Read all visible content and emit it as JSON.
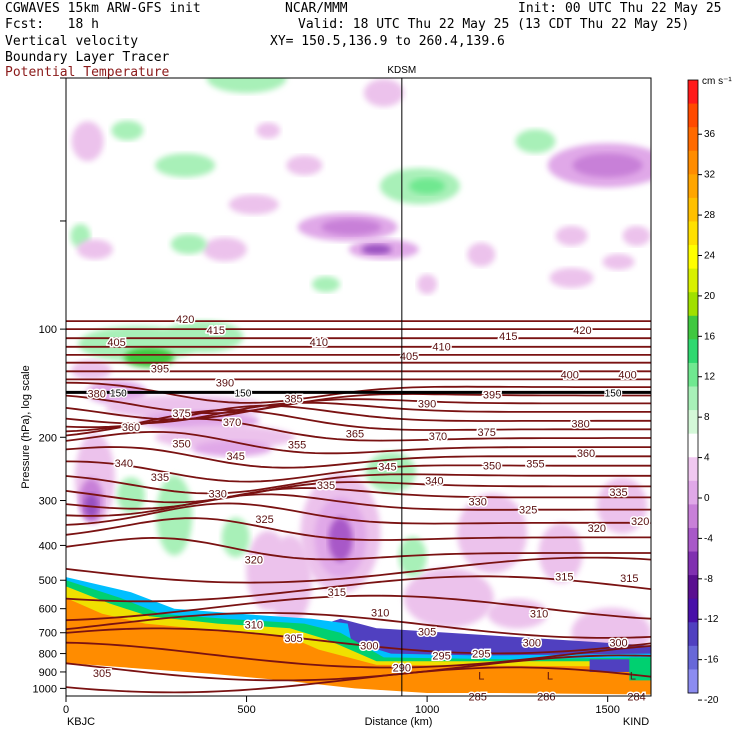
{
  "header": {
    "left": [
      "CGWAVES 15km ARW-GFS init",
      "Fcst:   18 h",
      "Vertical velocity",
      "Boundary Layer Tracer",
      "Potential Temperature"
    ],
    "center": [
      "NCAR/MMM",
      "Valid: 18 UTC Thu 22 May 25 (13 CDT Thu 22 May 25)",
      "XY= 150.5,136.9 to 260.4,139.6"
    ],
    "init": "Init: 00 UTC Thu 22 May 25",
    "station_top": "KDSM"
  },
  "colors": {
    "theta": "#7a1212",
    "tropopause": "#000000",
    "pbl_orange": "#ff8c00"
  },
  "chart_data": {
    "type": "cross-section",
    "xlabel": "Distance (km)",
    "ylabel": "Pressure (hPa), log scale",
    "x_ticks": [
      "0",
      "500",
      "1000",
      "1500"
    ],
    "y_ticks": [
      "100",
      "200",
      "300",
      "400",
      "500",
      "600",
      "700",
      "800",
      "900",
      "1000"
    ],
    "xlim": [
      0,
      1620
    ],
    "ylim": [
      1050,
      20
    ],
    "x_end_labels": [
      "KBJC",
      "KIND"
    ],
    "station_marker_km": 930,
    "colorbar": {
      "unit": "cm s⁻¹",
      "ticks": [
        "36",
        "32",
        "28",
        "24",
        "20",
        "16",
        "12",
        "8",
        "4",
        "0",
        "-4",
        "-8",
        "-12",
        "-16",
        "-20"
      ],
      "colors": [
        "#ff1a1a",
        "#ff4a00",
        "#ff6a00",
        "#ff8c00",
        "#ffa500",
        "#ffc000",
        "#ffe000",
        "#ffff00",
        "#d8f000",
        "#a0e000",
        "#40c840",
        "#30d870",
        "#70e890",
        "#a8f0b8",
        "#d4f8d8",
        "#ffffff",
        "#f0c8f0",
        "#e0a8e8",
        "#c880d8",
        "#a858c8",
        "#8030b0",
        "#5a0f90",
        "#4810a8",
        "#5040c0",
        "#6868d8",
        "#8c8cf0"
      ]
    },
    "theta_labels": [
      {
        "v": "420",
        "x": 330,
        "p": 93
      },
      {
        "v": "415",
        "x": 415,
        "p": 100
      },
      {
        "v": "410",
        "x": 700,
        "p": 108
      },
      {
        "v": "405",
        "x": 140,
        "p": 108
      },
      {
        "v": "405",
        "x": 950,
        "p": 118
      },
      {
        "v": "410",
        "x": 1040,
        "p": 111
      },
      {
        "v": "415",
        "x": 1225,
        "p": 104
      },
      {
        "v": "420",
        "x": 1430,
        "p": 100
      },
      {
        "v": "395",
        "x": 260,
        "p": 128
      },
      {
        "v": "390",
        "x": 440,
        "p": 140
      },
      {
        "v": "400",
        "x": 1395,
        "p": 133
      },
      {
        "v": "400",
        "x": 1555,
        "p": 133
      },
      {
        "v": "380",
        "x": 85,
        "p": 150
      },
      {
        "v": "385",
        "x": 630,
        "p": 155
      },
      {
        "v": "390",
        "x": 1000,
        "p": 160
      },
      {
        "v": "395",
        "x": 1180,
        "p": 151
      },
      {
        "v": "375",
        "x": 320,
        "p": 170
      },
      {
        "v": "370",
        "x": 460,
        "p": 180
      },
      {
        "v": "360",
        "x": 180,
        "p": 186
      },
      {
        "v": "380",
        "x": 1425,
        "p": 182
      },
      {
        "v": "365",
        "x": 800,
        "p": 194
      },
      {
        "v": "370",
        "x": 1030,
        "p": 197
      },
      {
        "v": "375",
        "x": 1165,
        "p": 192
      },
      {
        "v": "350",
        "x": 320,
        "p": 207
      },
      {
        "v": "355",
        "x": 640,
        "p": 208
      },
      {
        "v": "345",
        "x": 470,
        "p": 224
      },
      {
        "v": "360",
        "x": 1440,
        "p": 220
      },
      {
        "v": "340",
        "x": 160,
        "p": 234
      },
      {
        "v": "345",
        "x": 890,
        "p": 240
      },
      {
        "v": "350",
        "x": 1180,
        "p": 238
      },
      {
        "v": "355",
        "x": 1300,
        "p": 235
      },
      {
        "v": "335",
        "x": 260,
        "p": 256
      },
      {
        "v": "340",
        "x": 1020,
        "p": 262
      },
      {
        "v": "335",
        "x": 720,
        "p": 270
      },
      {
        "v": "330",
        "x": 420,
        "p": 285
      },
      {
        "v": "335",
        "x": 1530,
        "p": 282
      },
      {
        "v": "330",
        "x": 1140,
        "p": 300
      },
      {
        "v": "325",
        "x": 1280,
        "p": 316
      },
      {
        "v": "325",
        "x": 550,
        "p": 336
      },
      {
        "v": "320",
        "x": 1470,
        "p": 355
      },
      {
        "v": "320",
        "x": 1590,
        "p": 340
      },
      {
        "v": "320",
        "x": 520,
        "p": 435
      },
      {
        "v": "315",
        "x": 750,
        "p": 535
      },
      {
        "v": "315",
        "x": 1380,
        "p": 485
      },
      {
        "v": "315",
        "x": 1560,
        "p": 490
      },
      {
        "v": "310",
        "x": 870,
        "p": 610
      },
      {
        "v": "310",
        "x": 1310,
        "p": 615
      },
      {
        "v": "310",
        "x": 520,
        "p": 660
      },
      {
        "v": "305",
        "x": 630,
        "p": 720
      },
      {
        "v": "305",
        "x": 1000,
        "p": 690
      },
      {
        "v": "300",
        "x": 840,
        "p": 755
      },
      {
        "v": "300",
        "x": 1290,
        "p": 740
      },
      {
        "v": "300",
        "x": 1530,
        "p": 740
      },
      {
        "v": "295",
        "x": 1040,
        "p": 805
      },
      {
        "v": "295",
        "x": 1150,
        "p": 795
      },
      {
        "v": "290",
        "x": 930,
        "p": 870
      },
      {
        "v": "305",
        "x": 100,
        "p": 900
      },
      {
        "v": "285",
        "x": 1140,
        "p": 1045
      },
      {
        "v": "286",
        "x": 1330,
        "p": 1045
      },
      {
        "v": "284",
        "x": 1580,
        "p": 1045
      }
    ],
    "tropopause_labels": [
      {
        "v": "150",
        "x": 145
      },
      {
        "v": "150",
        "x": 490
      },
      {
        "v": "150",
        "x": 1515
      }
    ],
    "low_markers": [
      {
        "v": "L",
        "x": 1150,
        "p": 920
      },
      {
        "v": "L",
        "x": 1340,
        "p": 920
      },
      {
        "v": "L",
        "x": 1570,
        "p": 920
      }
    ]
  }
}
